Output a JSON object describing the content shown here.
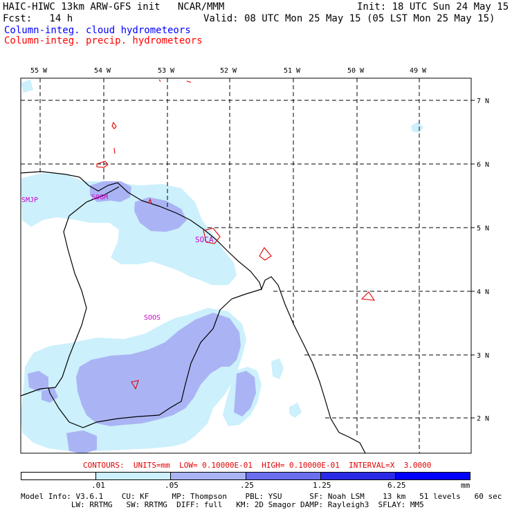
{
  "header": {
    "line1_left": "HAIC-HIWC 13km ARW-GFS init   NCAR/MMM",
    "line1_right": "Init: 18 UTC Sun 24 May 15",
    "line2_left": "Fcst:   14 h",
    "line2_right": "Valid: 08 UTC Mon 25 May 15 (05 LST Mon 25 May 15)",
    "line3": "Column-integ. cloud hydrometeors",
    "line4": "Column-integ. precip. hydrometeors",
    "line3_color": "#0000ff",
    "line4_color": "#ff0000"
  },
  "map": {
    "lon_labels": [
      "55 W",
      "54 W",
      "53 W",
      "52 W",
      "51 W",
      "50 W",
      "49 W"
    ],
    "lat_labels": [
      "7 N",
      "6 N",
      "5 N",
      "4 N",
      "3 N",
      "2 N"
    ],
    "stations": [
      "SMJP",
      "SOGM",
      "SOCA",
      "SOOS"
    ],
    "station_color": "#cc00cc"
  },
  "contours_text": "CONTOURS:  UNITS=mm  LOW= 0.10000E-01  HIGH= 0.10000E-01  INTERVAL=X  3.0000",
  "colorbar": {
    "labels": [
      ".01",
      ".05",
      ".25",
      "1.25",
      "6.25",
      "mm"
    ],
    "colors": [
      "#ffffff",
      "#ccf0fc",
      "#aab4f4",
      "#6a6ff0",
      "#2a2ae6",
      "#0000ff"
    ]
  },
  "footer": {
    "line1": "Model Info: V3.6.1    CU: KF     MP: Thompson    PBL: YSU      SF: Noah LSM    13 km   51 levels   60 sec",
    "line2": "           LW: RRTMG   SW: RRTMG  DIFF: full   KM: 2D Smagor DAMP: Rayleigh3  SFLAY: MM5"
  }
}
